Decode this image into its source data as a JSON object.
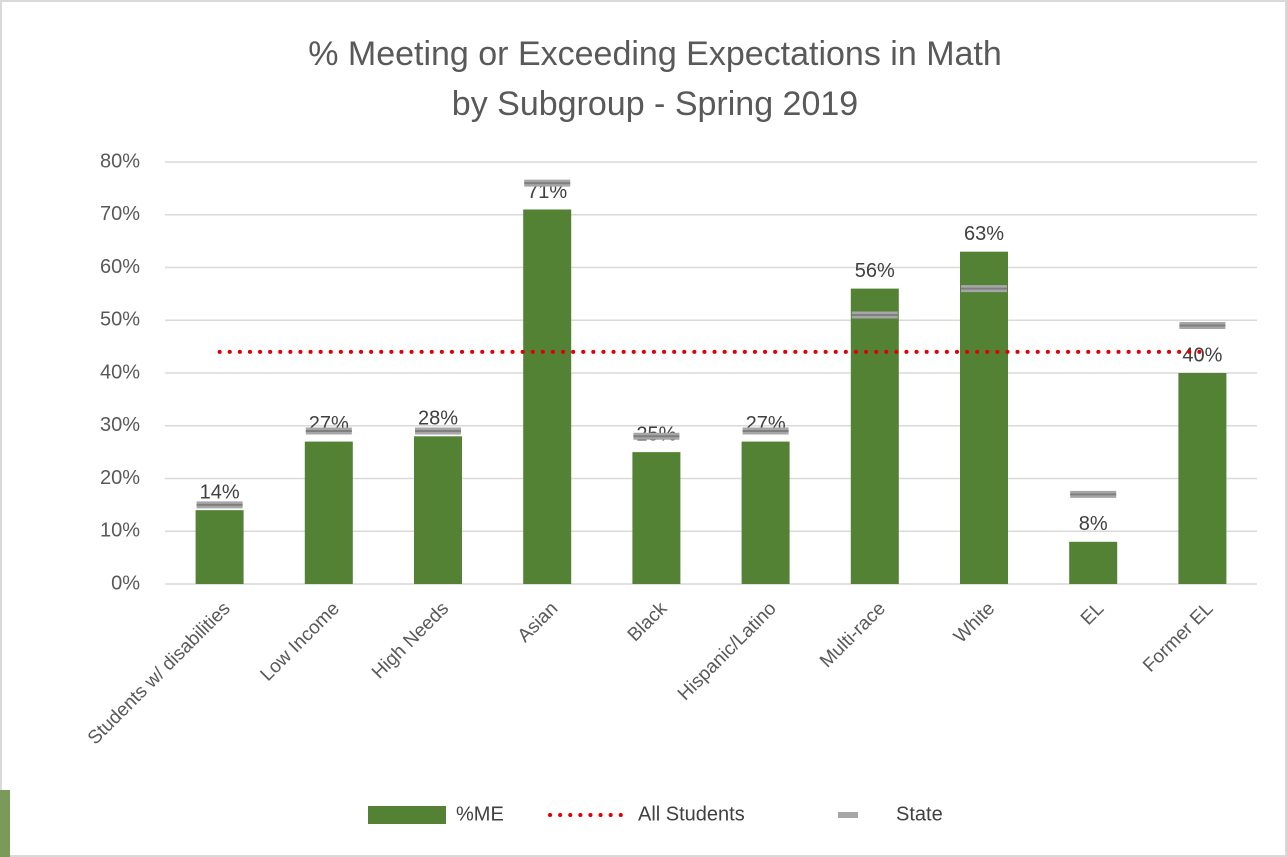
{
  "chart_data": {
    "type": "bar",
    "title": [
      "% Meeting or Exceeding Expectations in Math",
      "by Subgroup - Spring 2019"
    ],
    "categories": [
      "Students w/ disabilities",
      "Low Income",
      "High Needs",
      "Asian",
      "Black",
      "Hispanic/Latino",
      "Multi-race",
      "White",
      "EL",
      "Former EL"
    ],
    "series": [
      {
        "name": "%ME",
        "type": "bar",
        "color": "#548235",
        "values": [
          14,
          27,
          28,
          71,
          25,
          27,
          56,
          63,
          8,
          40
        ],
        "value_labels": [
          "14%",
          "27%",
          "28%",
          "71%",
          "25%",
          "27%",
          "56%",
          "63%",
          "8%",
          "40%"
        ]
      },
      {
        "name": "All Students",
        "type": "line",
        "color": "#e00000",
        "values": [
          44,
          44,
          44,
          44,
          44,
          44,
          44,
          44,
          44,
          44
        ]
      },
      {
        "name": "State",
        "type": "marker",
        "color": "#a6a6a6",
        "values": [
          15,
          29,
          29,
          76,
          28,
          29,
          51,
          56,
          17,
          49
        ]
      }
    ],
    "ylim": [
      0,
      80
    ],
    "yticks": [
      {
        "value": 0,
        "label": "0%"
      },
      {
        "value": 10,
        "label": "10%"
      },
      {
        "value": 20,
        "label": "20%"
      },
      {
        "value": 30,
        "label": "30%"
      },
      {
        "value": 40,
        "label": "40%"
      },
      {
        "value": 50,
        "label": "50%"
      },
      {
        "value": 60,
        "label": "60%"
      },
      {
        "value": 70,
        "label": "70%"
      },
      {
        "value": 80,
        "label": "80%"
      }
    ],
    "grid": true,
    "legend": "bottom"
  }
}
